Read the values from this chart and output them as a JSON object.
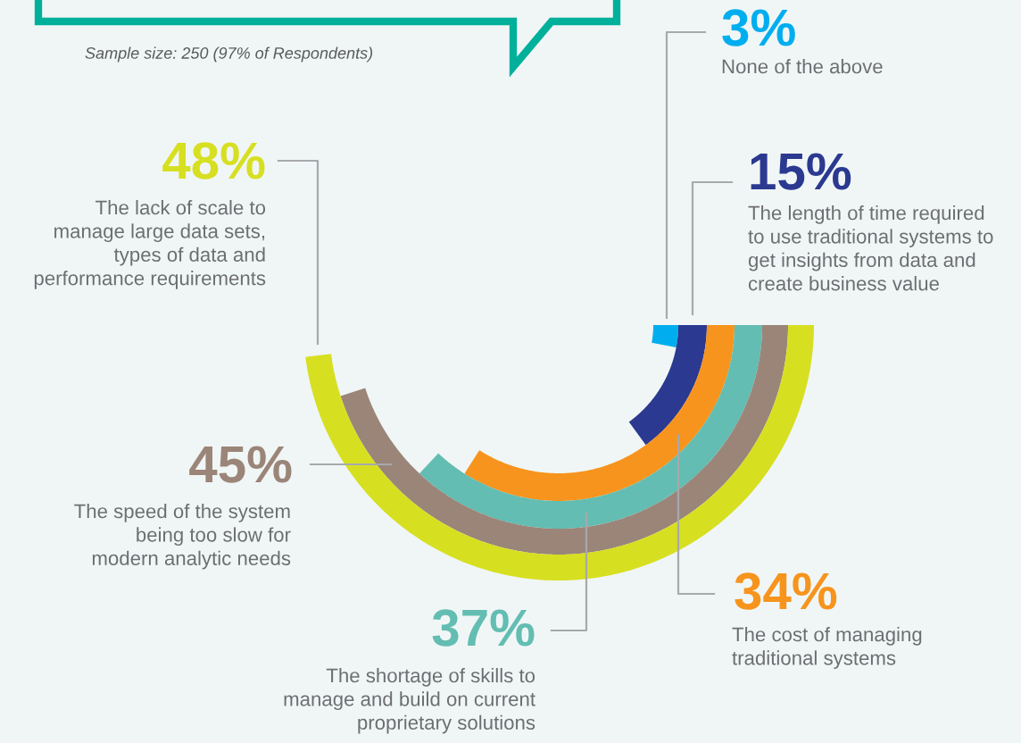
{
  "chart_data": {
    "type": "other",
    "categories": [
      "None of the above",
      "The length of time required\nto use traditional systems to\nget insights from data and\ncreate business value",
      "The cost of managing\ntraditional systems",
      "The shortage of skills to\nmanage and build on current\nproprietary solutions",
      "The speed of the system\nbeing too slow for\nmodern analytic needs",
      "The lack of scale to\nmanage large data sets,\ntypes of data and\nperformance requirements"
    ],
    "values": [
      3,
      15,
      34,
      37,
      45,
      48
    ],
    "value_labels": [
      "3%",
      "15%",
      "34%",
      "37%",
      "45%",
      "48%"
    ],
    "colors": [
      "#00aeef",
      "#2b3990",
      "#f7941d",
      "#63bdb2",
      "#9b8579",
      "#d7df21"
    ],
    "annotations": [
      "Sample size: 250 (97% of Respondents)"
    ]
  }
}
